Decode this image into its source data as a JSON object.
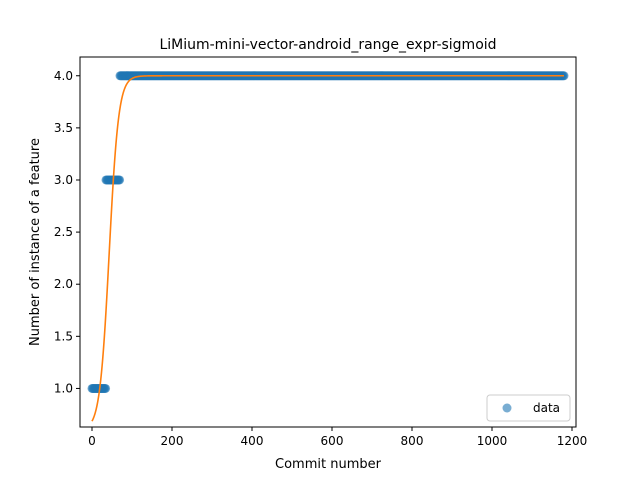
{
  "chart_data": {
    "type": "scatter",
    "title": "LiMium-mini-vector-android_range_expr-sigmoid",
    "xlabel": "Commit number",
    "ylabel": "Number of instance of a feature",
    "xlim": [
      -30,
      1210
    ],
    "ylim": [
      0.63,
      4.18
    ],
    "xticks": [
      0,
      200,
      400,
      600,
      800,
      1000,
      1200
    ],
    "yticks": [
      1.0,
      1.5,
      2.0,
      2.5,
      3.0,
      3.5,
      4.0
    ],
    "xtick_labels": [
      "0",
      "200",
      "400",
      "600",
      "800",
      "1000",
      "1200"
    ],
    "ytick_labels": [
      "1.0",
      "1.5",
      "2.0",
      "2.5",
      "3.0",
      "3.5",
      "4.0"
    ],
    "legend": {
      "position": "lower-right",
      "entries": [
        "data"
      ]
    },
    "series": [
      {
        "name": "data",
        "kind": "points",
        "color": "#1f77b4",
        "segments": [
          {
            "x_start": 0,
            "x_end": 35,
            "y": 1
          },
          {
            "x_start": 35,
            "x_end": 70,
            "y": 3
          },
          {
            "x_start": 70,
            "x_end": 1180,
            "y": 4
          }
        ]
      },
      {
        "kind": "fitted-curve",
        "color": "#ff7f0e",
        "x_range": [
          0,
          1180
        ],
        "model": {
          "L": 4.0,
          "lower": 0.6,
          "k": 0.085,
          "x0": 43
        }
      }
    ],
    "grid": false
  }
}
